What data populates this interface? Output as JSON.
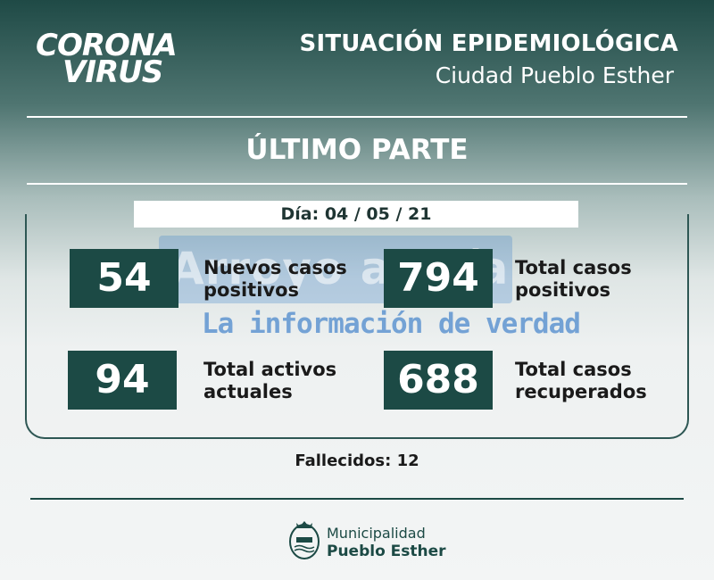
{
  "logo": {
    "line1": "CORONA",
    "line2": "VIRUS"
  },
  "header": {
    "title": "SITUACIÓN EPIDEMIOLÓGICA",
    "subtitle": "Ciudad Pueblo Esther"
  },
  "section_title": "ÚLTIMO PARTE",
  "date_label": "Día: 04 / 05 / 21",
  "stats": [
    {
      "value": "54",
      "label_line1": "Nuevos casos",
      "label_line2": "positivos"
    },
    {
      "value": "794",
      "label_line1": "Total casos",
      "label_line2": "positivos"
    },
    {
      "value": "94",
      "label_line1": "Total activos",
      "label_line2": "actuales"
    },
    {
      "value": "688",
      "label_line1": "Total casos",
      "label_line2": "recuperados"
    }
  ],
  "watermark": {
    "brand": "Arroyo al Día",
    "tagline": "La información de verdad"
  },
  "deaths_label": "Fallecidos: 12",
  "footer": {
    "line1": "Municipalidad",
    "line2": "Pueblo Esther"
  },
  "colors": {
    "box": "#1c4a45",
    "header_dark": "#1f4a46"
  }
}
